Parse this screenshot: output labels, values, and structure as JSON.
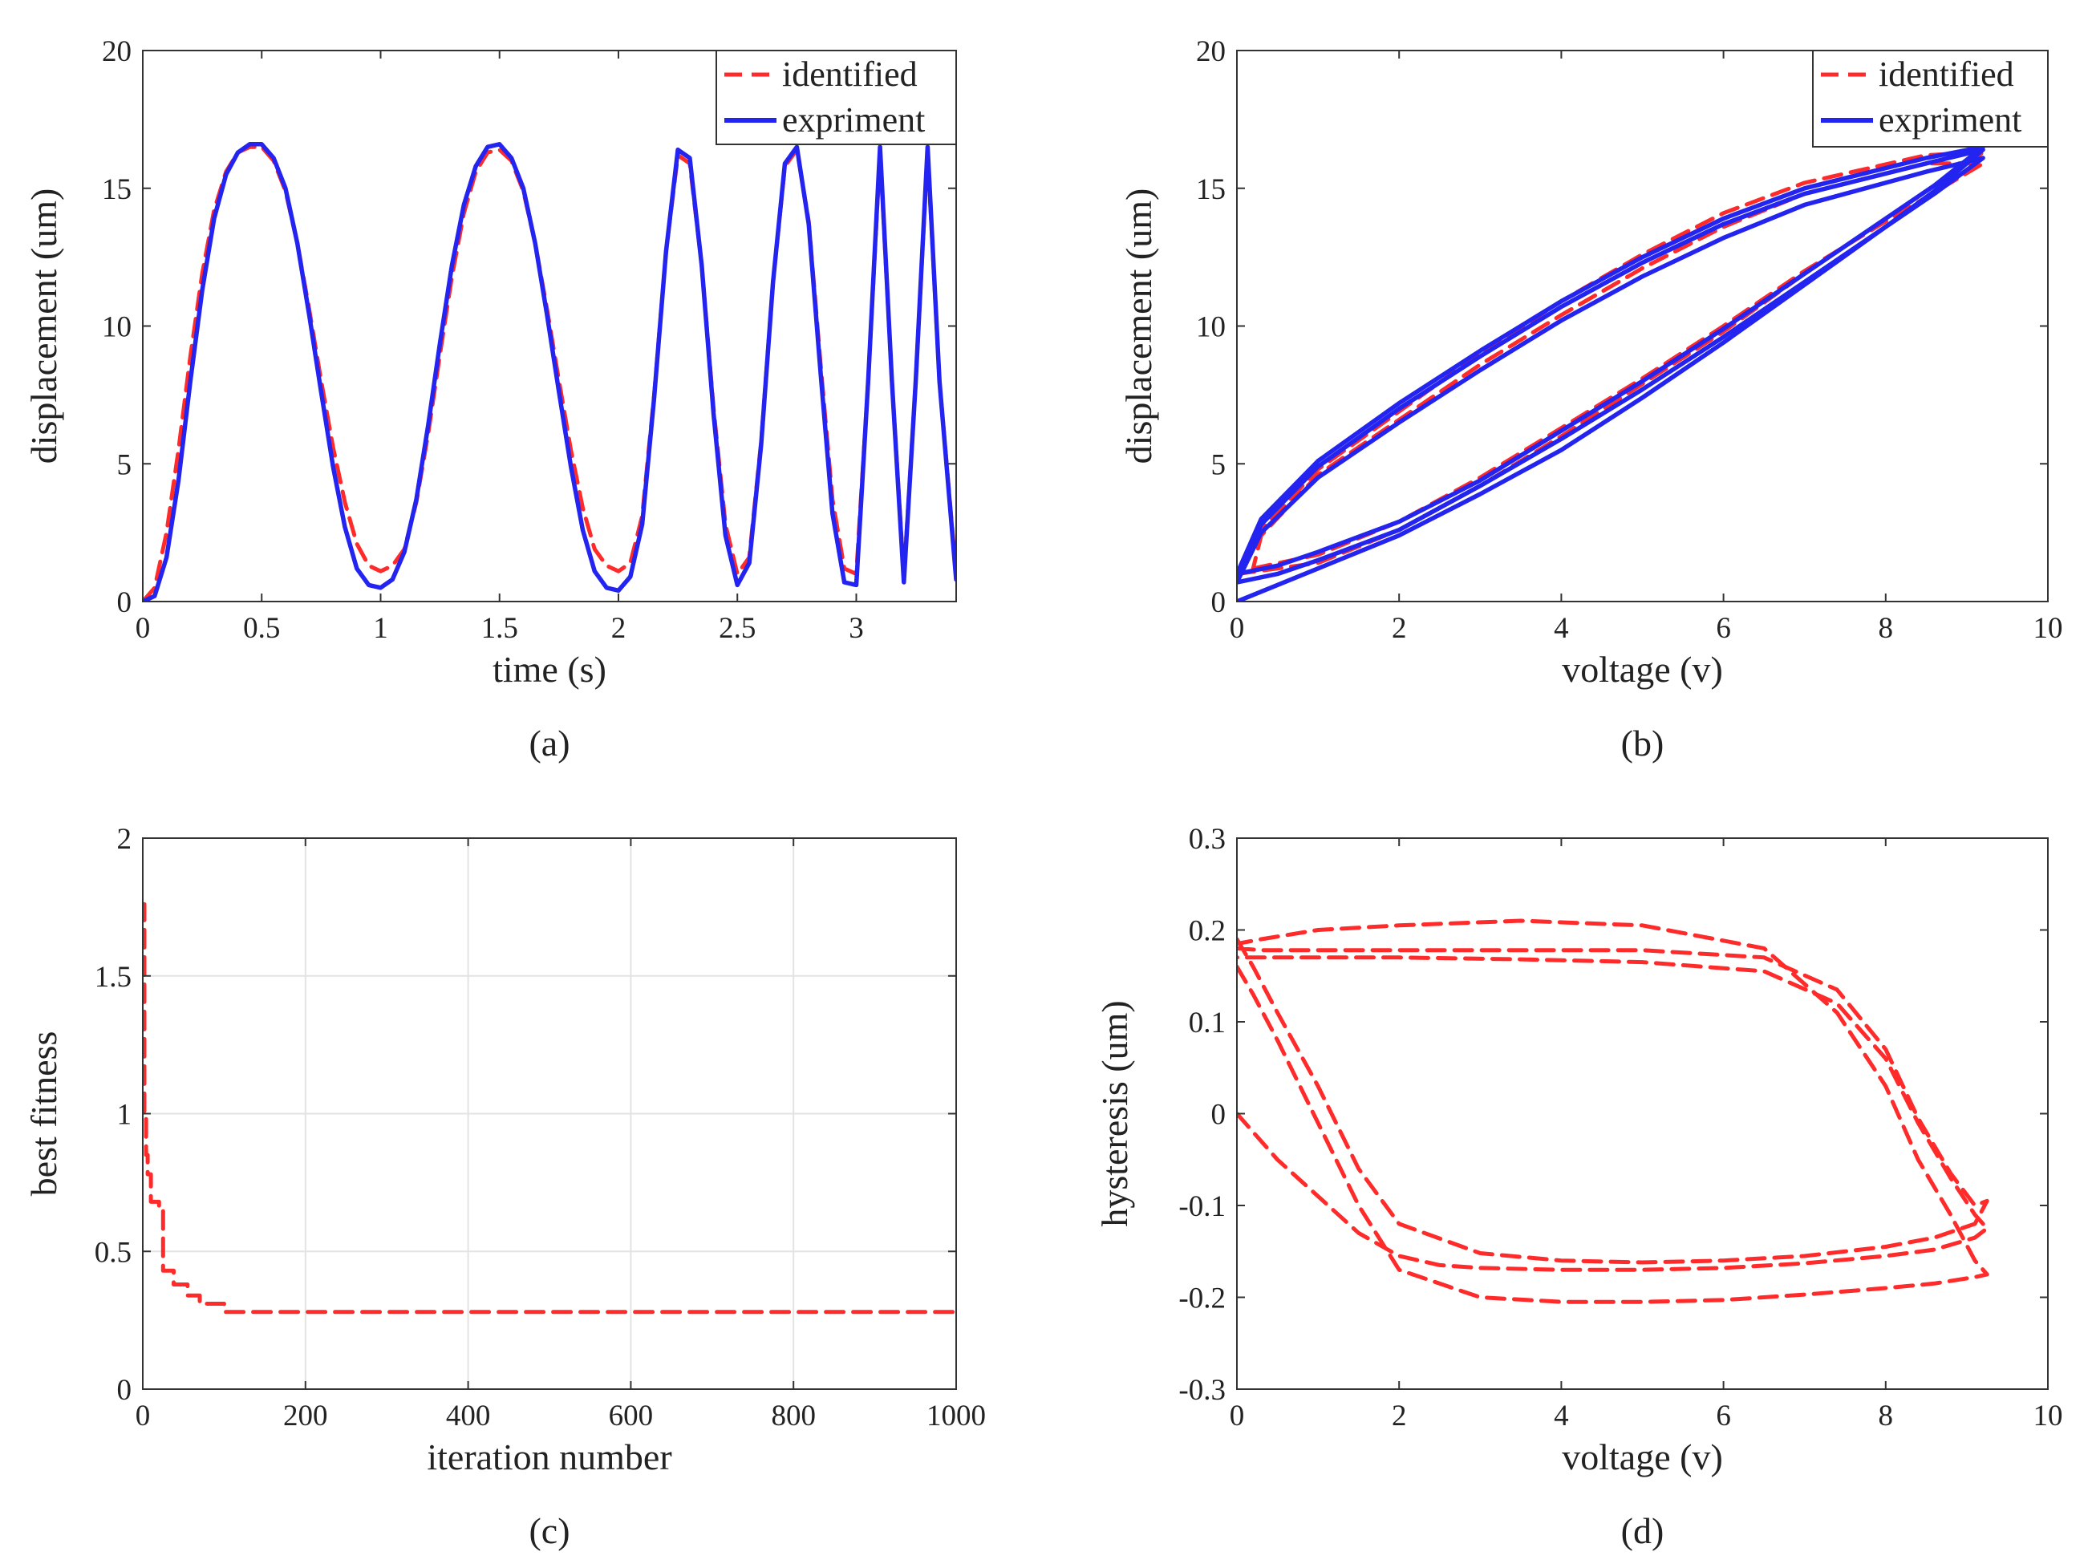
{
  "chart_data": [
    {
      "id": "a",
      "type": "line",
      "caption": "(a)",
      "xlabel": "time (s)",
      "ylabel": "displacement (um)",
      "xlim": [
        0,
        3.42
      ],
      "ylim": [
        0,
        20
      ],
      "xticks": [
        0,
        0.5,
        1,
        1.5,
        2,
        2.5,
        3
      ],
      "xtick_labels": [
        "0",
        "0.5",
        "1",
        "1.5",
        "2",
        "2.5",
        "3"
      ],
      "yticks": [
        0,
        5,
        10,
        15,
        20
      ],
      "ytick_labels": [
        "0",
        "5",
        "10",
        "15",
        "20"
      ],
      "grid": false,
      "legend_position": "top-right",
      "series": [
        {
          "name": "identified",
          "style": "dashed",
          "color": "#ff2a2a",
          "x": [
            0,
            0.05,
            0.1,
            0.15,
            0.2,
            0.25,
            0.3,
            0.35,
            0.4,
            0.45,
            0.5,
            0.55,
            0.6,
            0.65,
            0.7,
            0.75,
            0.8,
            0.85,
            0.9,
            0.95,
            1.0,
            1.05,
            1.1,
            1.15,
            1.2,
            1.25,
            1.3,
            1.35,
            1.4,
            1.45,
            1.5,
            1.55,
            1.6,
            1.65,
            1.7,
            1.75,
            1.8,
            1.85,
            1.9,
            1.95,
            2.0,
            2.05,
            2.1,
            2.15,
            2.2,
            2.25,
            2.3,
            2.35,
            2.4,
            2.45,
            2.5,
            2.55,
            2.6,
            2.65,
            2.7,
            2.75,
            2.8,
            2.85,
            2.9,
            2.95,
            3.0,
            3.05,
            3.1,
            3.15,
            3.2,
            3.25,
            3.3,
            3.35,
            3.42
          ],
          "values": [
            0,
            0.5,
            2.5,
            5.5,
            8.9,
            11.9,
            14.2,
            15.6,
            16.3,
            16.5,
            16.5,
            16.0,
            14.9,
            13.0,
            10.6,
            8.0,
            5.6,
            3.6,
            2.1,
            1.3,
            1.1,
            1.3,
            1.9,
            3.6,
            6.1,
            9.0,
            11.8,
            14.1,
            15.6,
            16.3,
            16.4,
            16.0,
            14.9,
            13.0,
            10.6,
            8.0,
            5.5,
            3.4,
            1.9,
            1.3,
            1.1,
            1.4,
            3.1,
            7.5,
            12.7,
            16.2,
            15.9,
            12.2,
            7.0,
            2.8,
            1.0,
            1.6,
            5.8,
            11.6,
            15.8,
            16.4,
            13.8,
            8.6,
            3.7,
            1.2,
            1.0,
            8.0,
            16.3,
            8.0,
            0.9,
            8.0,
            16.3,
            8.0,
            1.0
          ]
        },
        {
          "name": "expriment",
          "style": "solid",
          "color": "#2424f0",
          "x": [
            0,
            0.05,
            0.1,
            0.15,
            0.2,
            0.25,
            0.3,
            0.35,
            0.4,
            0.45,
            0.5,
            0.55,
            0.6,
            0.65,
            0.7,
            0.75,
            0.8,
            0.85,
            0.9,
            0.95,
            1.0,
            1.05,
            1.1,
            1.15,
            1.2,
            1.25,
            1.3,
            1.35,
            1.4,
            1.45,
            1.5,
            1.55,
            1.6,
            1.65,
            1.7,
            1.75,
            1.8,
            1.85,
            1.9,
            1.95,
            2.0,
            2.05,
            2.1,
            2.15,
            2.2,
            2.25,
            2.3,
            2.35,
            2.4,
            2.45,
            2.5,
            2.55,
            2.6,
            2.65,
            2.7,
            2.75,
            2.8,
            2.85,
            2.9,
            2.95,
            3.0,
            3.05,
            3.1,
            3.15,
            3.2,
            3.25,
            3.3,
            3.35,
            3.42
          ],
          "values": [
            0,
            0.2,
            1.6,
            4.4,
            8.0,
            11.3,
            13.9,
            15.5,
            16.3,
            16.6,
            16.6,
            16.1,
            15.0,
            13.0,
            10.4,
            7.6,
            4.9,
            2.7,
            1.2,
            0.6,
            0.5,
            0.8,
            1.8,
            3.7,
            6.4,
            9.4,
            12.2,
            14.4,
            15.8,
            16.5,
            16.6,
            16.1,
            15.0,
            13.0,
            10.4,
            7.6,
            4.9,
            2.6,
            1.1,
            0.5,
            0.4,
            0.9,
            2.8,
            7.4,
            12.7,
            16.4,
            16.1,
            12.2,
            6.8,
            2.4,
            0.6,
            1.4,
            5.7,
            11.6,
            15.9,
            16.5,
            13.7,
            8.3,
            3.2,
            0.7,
            0.6,
            8.0,
            16.5,
            8.0,
            0.7,
            8.0,
            16.5,
            8.0,
            0.8
          ]
        }
      ]
    },
    {
      "id": "b",
      "type": "line",
      "caption": "(b)",
      "xlabel": "voltage (v)",
      "ylabel": "displacement (um)",
      "xlim": [
        0,
        10
      ],
      "ylim": [
        0,
        20
      ],
      "xticks": [
        0,
        2,
        4,
        6,
        8,
        10
      ],
      "xtick_labels": [
        "0",
        "2",
        "4",
        "6",
        "8",
        "10"
      ],
      "yticks": [
        0,
        5,
        10,
        15,
        20
      ],
      "ytick_labels": [
        "0",
        "5",
        "10",
        "15",
        "20"
      ],
      "grid": false,
      "legend_position": "top-right",
      "series": [
        {
          "name": "identified",
          "style": "dashed",
          "color": "#ff2a2a",
          "loops": [
            {
              "x": [
                0,
                1,
                2,
                3,
                4,
                5,
                6,
                7,
                8,
                8.8,
                9.2,
                8.5,
                7,
                6,
                5,
                4,
                3,
                2,
                1,
                0.3,
                0
              ],
              "y": [
                1.0,
                1.4,
                2.6,
                4.2,
                6.0,
                7.9,
                9.8,
                11.9,
                13.9,
                15.5,
                16.3,
                16.2,
                15.2,
                14.1,
                12.6,
                10.9,
                9.0,
                6.9,
                4.8,
                2.6,
                1.0
              ]
            },
            {
              "x": [
                0.2,
                1,
                2,
                3,
                4,
                5,
                6,
                7,
                8,
                8.8,
                9.2,
                8.5,
                7,
                6,
                5,
                4,
                3,
                2,
                1,
                0.3,
                0.2
              ],
              "y": [
                1.2,
                1.7,
                2.9,
                4.5,
                6.3,
                8.1,
                10.0,
                12.0,
                13.8,
                15.2,
                15.9,
                15.9,
                14.8,
                13.6,
                12.1,
                10.4,
                8.6,
                6.6,
                4.6,
                2.4,
                1.2
              ]
            }
          ]
        },
        {
          "name": "expriment",
          "style": "solid",
          "color": "#2424f0",
          "loops": [
            {
              "x": [
                0,
                0.5,
                1,
                2,
                3,
                4,
                5,
                6,
                7,
                8,
                8.6,
                9.2,
                8.5,
                7,
                6,
                5,
                4,
                3,
                2,
                1,
                0.3,
                0
              ],
              "y": [
                0,
                0.6,
                1.2,
                2.4,
                3.9,
                5.5,
                7.4,
                9.4,
                11.5,
                13.6,
                14.9,
                16.4,
                15.9,
                14.8,
                13.7,
                12.3,
                10.7,
                8.9,
                7.0,
                4.9,
                2.8,
                0.8
              ]
            },
            {
              "x": [
                0,
                0.5,
                1,
                2,
                3,
                4,
                5,
                6,
                7,
                8,
                8.6,
                9.2,
                8.5,
                7,
                6,
                5,
                4,
                3,
                2,
                1,
                0.3,
                0
              ],
              "y": [
                0.7,
                1.0,
                1.5,
                2.6,
                4.2,
                5.9,
                7.7,
                9.6,
                11.6,
                13.6,
                14.8,
                16.1,
                15.6,
                14.4,
                13.2,
                11.8,
                10.2,
                8.4,
                6.5,
                4.5,
                2.5,
                0.7
              ]
            },
            {
              "x": [
                0,
                0.5,
                1,
                2,
                3,
                4,
                5,
                6,
                7,
                8,
                8.6,
                9.2,
                8.5,
                7,
                6,
                5,
                4,
                3,
                2,
                1,
                0.3,
                0
              ],
              "y": [
                1.0,
                1.3,
                1.8,
                2.9,
                4.4,
                6.2,
                8.0,
                9.9,
                11.9,
                13.9,
                15.1,
                16.5,
                16.1,
                15.0,
                13.9,
                12.5,
                10.9,
                9.1,
                7.2,
                5.1,
                3.0,
                1.0
              ]
            }
          ]
        }
      ]
    },
    {
      "id": "c",
      "type": "line",
      "caption": "(c)",
      "xlabel": "iteration number",
      "ylabel": "best fitness",
      "xlim": [
        0,
        1000
      ],
      "ylim": [
        0,
        2
      ],
      "xticks": [
        0,
        200,
        400,
        600,
        800,
        1000
      ],
      "xtick_labels": [
        "0",
        "200",
        "400",
        "600",
        "800",
        "1000"
      ],
      "yticks": [
        0,
        0.5,
        1,
        1.5,
        2
      ],
      "ytick_labels": [
        "0",
        "0.5",
        "1",
        "1.5",
        "2"
      ],
      "grid": true,
      "series": [
        {
          "name": "best fitness",
          "style": "dashed",
          "color": "#ff2a2a",
          "x": [
            0,
            2,
            2,
            4,
            4,
            6,
            6,
            10,
            10,
            20,
            20,
            25,
            25,
            38,
            38,
            55,
            55,
            70,
            70,
            100,
            100,
            1000
          ],
          "values": [
            1.76,
            1.76,
            1.0,
            1.0,
            0.85,
            0.85,
            0.78,
            0.78,
            0.68,
            0.68,
            0.66,
            0.66,
            0.43,
            0.43,
            0.38,
            0.38,
            0.34,
            0.34,
            0.31,
            0.31,
            0.28,
            0.28
          ]
        }
      ]
    },
    {
      "id": "d",
      "type": "line",
      "caption": "(d)",
      "xlabel": "voltage (v)",
      "ylabel": "hysteresis (um)",
      "xlim": [
        0,
        10
      ],
      "ylim": [
        -0.3,
        0.3
      ],
      "xticks": [
        0,
        2,
        4,
        6,
        8,
        10
      ],
      "xtick_labels": [
        "0",
        "2",
        "4",
        "6",
        "8",
        "10"
      ],
      "yticks": [
        -0.3,
        -0.2,
        -0.1,
        0,
        0.1,
        0.2,
        0.3
      ],
      "ytick_labels": [
        "-0.3",
        "-0.2",
        "-0.1",
        "0",
        "0.1",
        "0.2",
        "0.3"
      ],
      "grid": false,
      "series": [
        {
          "name": "hysteresis",
          "style": "dashed",
          "color": "#ff2a2a",
          "loops": [
            {
              "x": [
                0,
                0.5,
                1,
                1.5,
                2,
                2.5,
                3,
                4,
                5,
                6,
                7,
                8,
                8.6,
                9.1,
                9.25,
                9.1,
                8.8,
                8.4,
                8.0,
                7.4,
                6.5,
                5.0,
                3.5,
                2.0,
                1.0,
                0.3,
                0
              ],
              "y": [
                0,
                -0.05,
                -0.09,
                -0.13,
                -0.155,
                -0.165,
                -0.168,
                -0.17,
                -0.17,
                -0.168,
                -0.163,
                -0.155,
                -0.148,
                -0.135,
                -0.125,
                -0.11,
                -0.07,
                -0.01,
                0.06,
                0.12,
                0.155,
                0.165,
                0.168,
                0.17,
                0.17,
                0.17,
                0.17
              ]
            },
            {
              "x": [
                0,
                0.2,
                0.5,
                1,
                1.5,
                2,
                3,
                4,
                5,
                6,
                7,
                8,
                8.6,
                9.1,
                9.25,
                9.1,
                8.8,
                8.4,
                8.0,
                7.4,
                6.5,
                5.0,
                3.5,
                2.0,
                1.0,
                0.3,
                0
              ],
              "y": [
                0.19,
                0.16,
                0.11,
                0.03,
                -0.06,
                -0.12,
                -0.152,
                -0.16,
                -0.162,
                -0.16,
                -0.155,
                -0.145,
                -0.135,
                -0.12,
                -0.095,
                -0.1,
                -0.065,
                -0.005,
                0.07,
                0.135,
                0.17,
                0.178,
                0.178,
                0.178,
                0.178,
                0.178,
                0.18
              ]
            },
            {
              "x": [
                0,
                0.2,
                0.5,
                1,
                1.5,
                2,
                3,
                4,
                5,
                6,
                7,
                8,
                8.6,
                9.1,
                9.25,
                9.1,
                8.8,
                8.4,
                8.0,
                7.4,
                6.5,
                5.0,
                3.5,
                2.0,
                1.0,
                0.3,
                0
              ],
              "y": [
                0.16,
                0.13,
                0.08,
                -0.01,
                -0.1,
                -0.17,
                -0.2,
                -0.205,
                -0.205,
                -0.203,
                -0.197,
                -0.19,
                -0.185,
                -0.178,
                -0.175,
                -0.16,
                -0.11,
                -0.05,
                0.03,
                0.11,
                0.18,
                0.205,
                0.21,
                0.205,
                0.2,
                0.19,
                0.185
              ]
            }
          ]
        }
      ]
    }
  ]
}
